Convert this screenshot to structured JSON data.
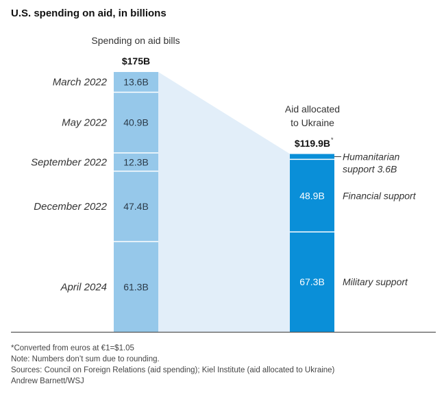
{
  "title": "U.S. spending on aid, in billions",
  "colors": {
    "left_bar": "#96c8ea",
    "right_bar": "#0a8fd8",
    "connector": "#e2eef9",
    "divider": "#ffffff",
    "axis": "#555555"
  },
  "chart_data": {
    "type": "bar",
    "title": "U.S. spending on aid, in billions",
    "stacked": true,
    "bars": [
      {
        "name": "Spending on aid bills",
        "total_label": "$175B",
        "total": 175,
        "segments": [
          {
            "category": "March 2022",
            "value": 13.6,
            "label": "13.6B"
          },
          {
            "category": "May 2022",
            "value": 40.9,
            "label": "40.9B"
          },
          {
            "category": "September 2022",
            "value": 12.3,
            "label": "12.3B"
          },
          {
            "category": "December 2022",
            "value": 47.4,
            "label": "47.4B"
          },
          {
            "category": "April 2024",
            "value": 61.3,
            "label": "61.3B"
          }
        ]
      },
      {
        "name": "Aid allocated to Ukraine",
        "name_lines": [
          "Aid allocated",
          "to Ukraine"
        ],
        "total_label": "$119.9B",
        "total_note": "*",
        "total": 119.9,
        "segments": [
          {
            "category": "Military support",
            "value": 67.3,
            "label": "67.3B",
            "side_label": [
              "Military support"
            ]
          },
          {
            "category": "Financial support",
            "value": 48.9,
            "label": "48.9B",
            "side_label": [
              "Financial support"
            ]
          },
          {
            "category": "Humanitarian support",
            "value": 3.6,
            "label": "",
            "side_label": [
              "Humanitarian",
              "support 3.6B"
            ]
          }
        ]
      }
    ],
    "ylim": [
      0,
      175
    ],
    "grid": false,
    "xlabel": "",
    "ylabel": ""
  },
  "footer": {
    "note1": "*Converted from euros at €1=$1.05",
    "note2": "Note: Numbers don’t sum due to rounding.",
    "sources": "Sources: Council on Foreign Relations (aid spending); Kiel Institute (aid allocated to Ukraine)",
    "credit": "Andrew Barnett/WSJ"
  }
}
